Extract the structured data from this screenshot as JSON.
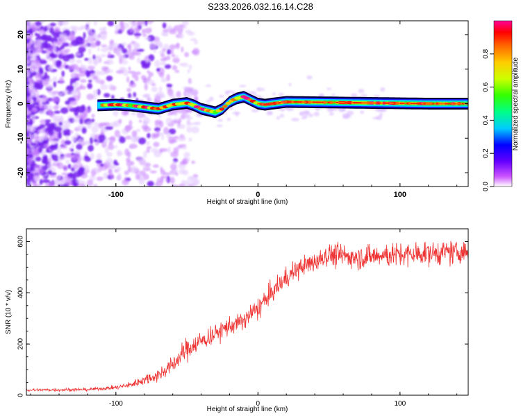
{
  "title": "S233.2026.032.16.14.C28",
  "colors": {
    "snr_line": "#ee3333",
    "colormap": [
      "#ffffff",
      "#cc55ff",
      "#6600ff",
      "#0000ff",
      "#00ccff",
      "#00ff88",
      "#33ff00",
      "#ccff00",
      "#ffcc00",
      "#ff6600",
      "#ff0000",
      "#ff0099"
    ]
  },
  "chart_data": [
    {
      "type": "heatmap",
      "name": "spectrogram",
      "xlabel": "Height of straight line (km)",
      "ylabel": "Frequency (Hz)",
      "xlim": [
        -163,
        148
      ],
      "ylim": [
        -24,
        24
      ],
      "xticks": [
        -100,
        0,
        100
      ],
      "xtick_labels": [
        "-100",
        "0",
        "100"
      ],
      "yticks": [
        -20,
        -10,
        0,
        10,
        20
      ],
      "ytick_labels": [
        "-20",
        "-10",
        "0",
        "10",
        "20"
      ],
      "ridge": {
        "description": "peak frequency track vs height",
        "x": [
          -113,
          -100,
          -90,
          -80,
          -70,
          -60,
          -50,
          -45,
          -40,
          -35,
          -30,
          -25,
          -20,
          -15,
          -10,
          -5,
          0,
          5,
          10,
          20,
          40,
          60,
          80,
          100,
          120,
          148
        ],
        "y": [
          -0.5,
          -0.3,
          -0.5,
          -1.0,
          -1.5,
          -0.3,
          0.2,
          -0.5,
          -1.5,
          -2.0,
          -2.5,
          -1.5,
          0.5,
          1.5,
          2.0,
          1.0,
          0.0,
          -0.3,
          0.0,
          0.5,
          0.4,
          0.3,
          0.2,
          0.1,
          0.0,
          0.0
        ]
      },
      "noise_region_x": [
        -163,
        -80
      ],
      "colorbar": {
        "label": "Normalized spectral amplitude",
        "range": [
          0,
          1
        ],
        "ticks": [
          0.0,
          0.2,
          0.4,
          0.6,
          0.8
        ],
        "tick_labels": [
          "0.0",
          "0.2",
          "0.4",
          "0.6",
          "0.8"
        ]
      }
    },
    {
      "type": "line",
      "name": "snr",
      "xlabel": "Height of straight line (km)",
      "ylabel": "SNR (10 * v/v)",
      "xlim": [
        -163,
        148
      ],
      "ylim": [
        0,
        650
      ],
      "xticks": [
        -100,
        0,
        100
      ],
      "xtick_labels": [
        "-100",
        "0",
        "100"
      ],
      "yticks": [
        0,
        200,
        400,
        600
      ],
      "ytick_labels": [
        "0",
        "200",
        "400",
        "600"
      ],
      "trend": {
        "x": [
          -163,
          -120,
          -100,
          -90,
          -80,
          -70,
          -60,
          -50,
          -40,
          -30,
          -20,
          -10,
          0,
          10,
          20,
          30,
          40,
          50,
          70,
          100,
          148
        ],
        "y": [
          20,
          22,
          30,
          40,
          60,
          80,
          120,
          180,
          210,
          240,
          270,
          290,
          340,
          400,
          460,
          500,
          520,
          550,
          540,
          550,
          560
        ]
      },
      "noise_amplitude": [
        8,
        8,
        10,
        15,
        25,
        35,
        45,
        55,
        55,
        50,
        50,
        50,
        55,
        55,
        55,
        55,
        55,
        60,
        60,
        60,
        60
      ]
    }
  ]
}
